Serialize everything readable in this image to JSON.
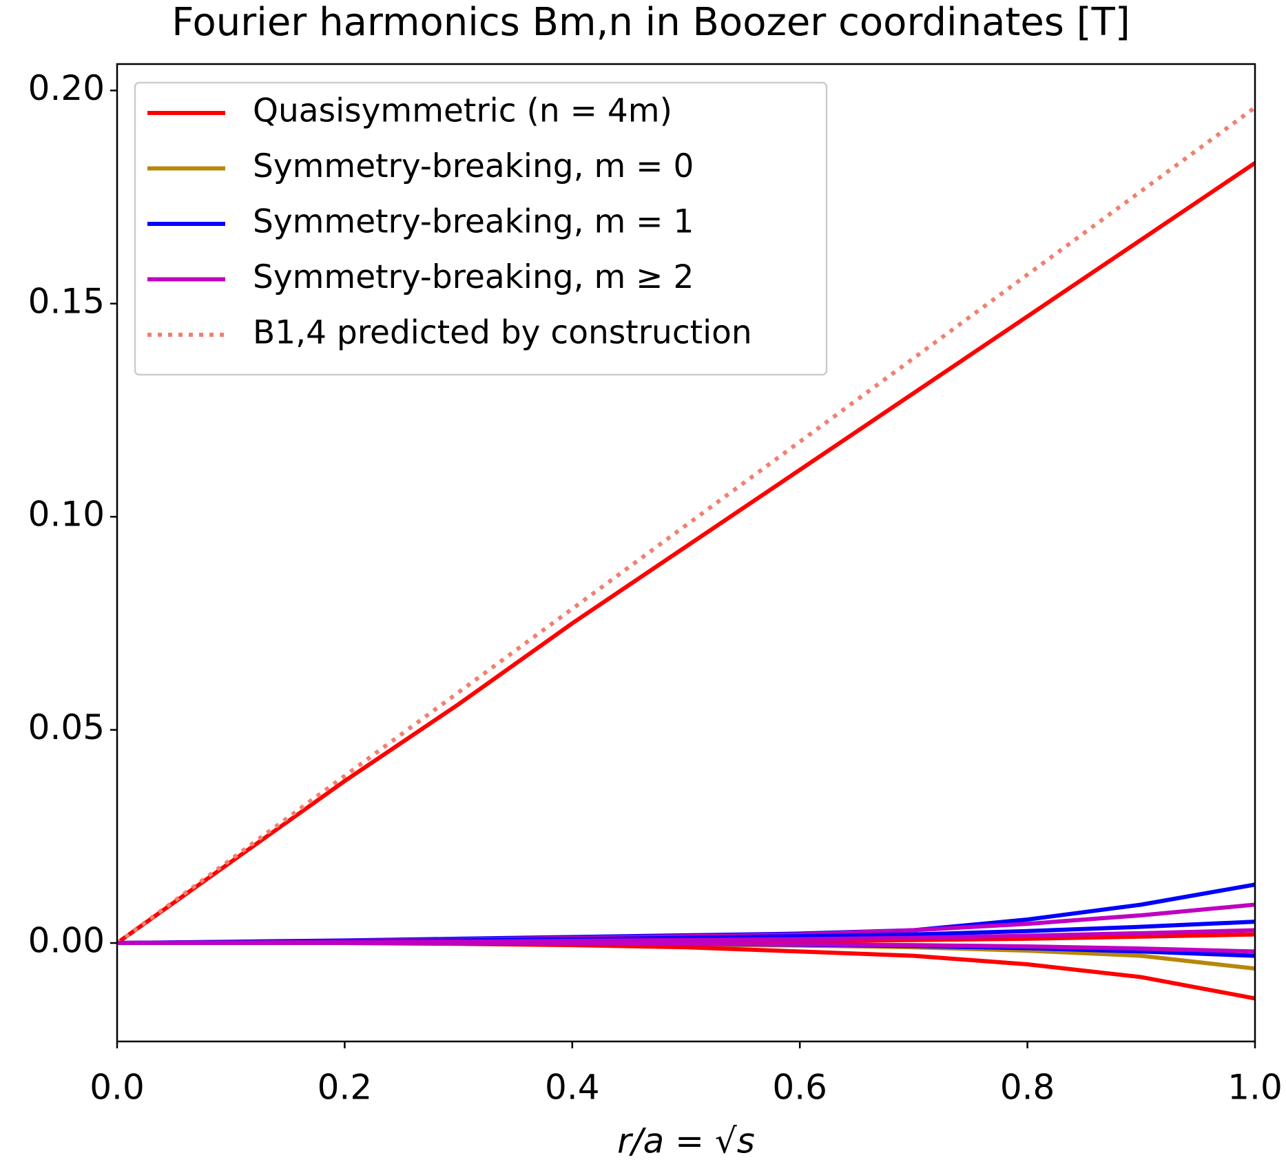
{
  "chart_data": {
    "type": "line",
    "title": "Fourier harmonics Bm,n in Boozer coordinates [T]",
    "x_label": "r/a = √s",
    "x": [
      0,
      0.1,
      0.2,
      0.3,
      0.4,
      0.5,
      0.6,
      0.7,
      0.8,
      0.9,
      1.0
    ],
    "xlim": [
      0,
      1
    ],
    "xticks": [
      {
        "value": 0,
        "label": "0.0"
      },
      0.2,
      0.4,
      0.6,
      0.8,
      {
        "value": 1,
        "label": "1.0"
      }
    ],
    "ylim": [
      -0.0231,
      0.2062
    ],
    "yticks": [
      {
        "value": 0,
        "label": "0.00"
      },
      0.05,
      {
        "value": 0.1,
        "label": "0.10"
      },
      0.15,
      {
        "value": 0.2,
        "label": "0.20"
      }
    ],
    "legend": "upper left",
    "series": [
      {
        "name": "Quasisymmetric (n = 4m)",
        "color": "#ff0000",
        "values": [
          0,
          0.019,
          0.038,
          0.056,
          0.075,
          0.093,
          0.111,
          0.129,
          0.147,
          0.165,
          0.183
        ]
      },
      {
        "name": "Symmetry-breaking, m = 0",
        "color": "#b8860b",
        "values": [
          0,
          0,
          0,
          0,
          -0.0002,
          -0.0004,
          -0.0006,
          -0.001,
          -0.0018,
          -0.003,
          -0.006
        ]
      },
      {
        "name": "Symmetry-breaking, m = 1",
        "color": "#0000ff",
        "values": [
          0,
          0.0003,
          0.0006,
          0.001,
          0.0014,
          0.0018,
          0.0022,
          0.003,
          0.0055,
          0.009,
          0.0137
        ]
      },
      {
        "name": "Symmetry-breaking, m ≥ 2",
        "color": "#c000c0",
        "values": [
          0,
          0.0002,
          0.0005,
          0.0008,
          0.0012,
          0.0016,
          0.002,
          0.003,
          0.0045,
          0.0065,
          0.009
        ]
      },
      {
        "name": "B1,4 predicted by construction",
        "color": "#f08070",
        "linestyle": "dotted",
        "values": [
          0,
          0.0196,
          0.0392,
          0.0588,
          0.0784,
          0.098,
          0.1176,
          0.1372,
          0.1568,
          0.1764,
          0.196
        ]
      },
      {
        "color": "#ff0000",
        "values": [
          0,
          0,
          0,
          -0.0002,
          -0.0005,
          -0.001,
          -0.002,
          -0.003,
          -0.005,
          -0.008,
          -0.013
        ]
      },
      {
        "color": "#ff0000",
        "values": [
          0,
          0,
          0,
          0,
          0,
          0.0002,
          0.0004,
          0.0007,
          0.001,
          0.0015,
          0.002
        ]
      },
      {
        "color": "#0000ff",
        "values": [
          0,
          0.0002,
          0.0004,
          0.0006,
          0.0009,
          0.0012,
          0.0016,
          0.002,
          0.0028,
          0.0038,
          0.005
        ]
      },
      {
        "color": "#0000ff",
        "values": [
          0,
          0,
          0,
          0,
          -0.0001,
          -0.0002,
          -0.0004,
          -0.0007,
          -0.0012,
          -0.002,
          -0.003
        ]
      },
      {
        "color": "#c000c0",
        "values": [
          0,
          0.0001,
          0.0002,
          0.0003,
          0.0005,
          0.0007,
          0.0009,
          0.0012,
          0.0017,
          0.0023,
          0.003
        ]
      },
      {
        "color": "#c000c0",
        "values": [
          0,
          0,
          0,
          0,
          -0.0001,
          -0.0002,
          -0.0003,
          -0.0005,
          -0.0008,
          -0.0013,
          -0.002
        ]
      }
    ]
  }
}
